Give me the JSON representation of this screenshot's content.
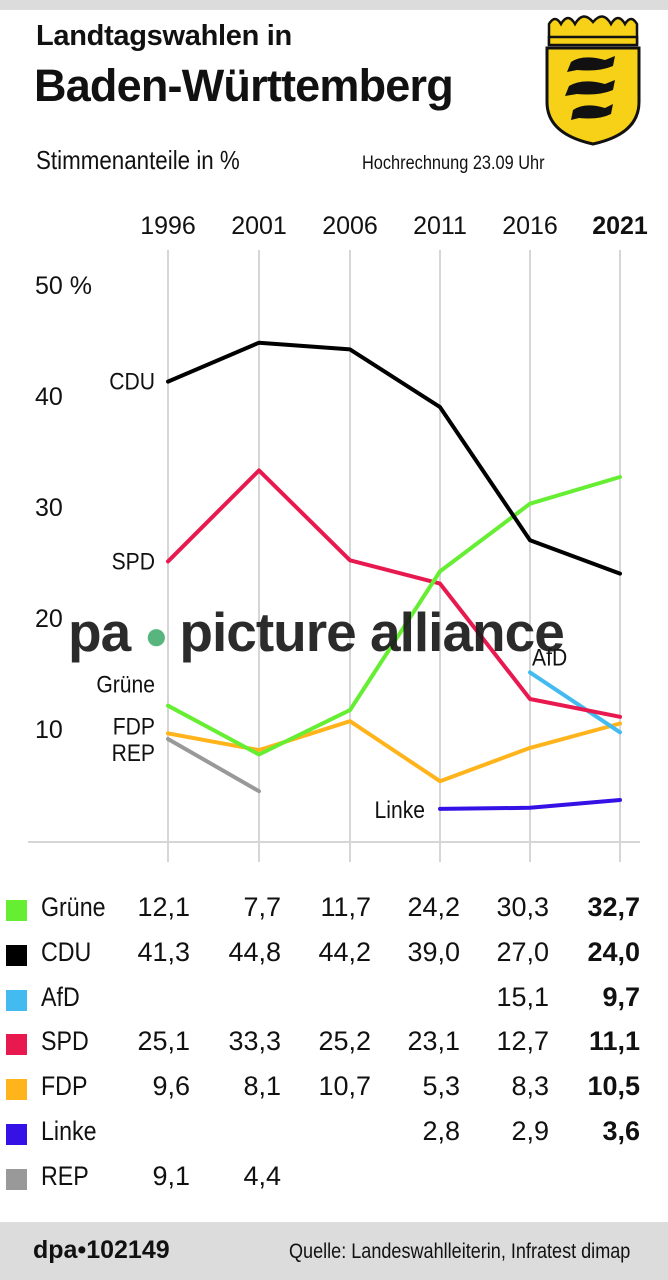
{
  "header": {
    "title_line1": "Landtagswahlen in",
    "title_line2": "Baden-Württemberg",
    "subtitle": "Stimmenanteile in %",
    "projection": "Hochrechnung 23.09 Uhr"
  },
  "chart_data": {
    "type": "line",
    "x": [
      "1996",
      "2001",
      "2006",
      "2011",
      "2016",
      "2021"
    ],
    "y_ticks": [
      "10",
      "20",
      "30",
      "40",
      "50 %"
    ],
    "ylim": [
      0,
      50
    ],
    "grid": "vertical gridlines at each election year",
    "legend": "table below the chart",
    "series": [
      {
        "name": "Grüne",
        "color": "#66ee33",
        "values": [
          12.1,
          7.7,
          11.7,
          24.2,
          30.3,
          32.7
        ]
      },
      {
        "name": "CDU",
        "color": "#000000",
        "values": [
          41.3,
          44.8,
          44.2,
          39.0,
          27.0,
          24.0
        ]
      },
      {
        "name": "AfD",
        "color": "#44bbf0",
        "values": [
          null,
          null,
          null,
          null,
          15.1,
          9.7
        ]
      },
      {
        "name": "SPD",
        "color": "#e8194f",
        "values": [
          25.1,
          33.3,
          25.2,
          23.1,
          12.7,
          11.1
        ]
      },
      {
        "name": "FDP",
        "color": "#ffb41b",
        "values": [
          9.6,
          8.1,
          10.7,
          5.3,
          8.3,
          10.5
        ]
      },
      {
        "name": "Linke",
        "color": "#3511e6",
        "values": [
          null,
          null,
          null,
          2.8,
          2.9,
          3.6
        ]
      },
      {
        "name": "REP",
        "color": "#999999",
        "values": [
          9.1,
          4.4,
          null,
          null,
          null,
          null
        ]
      }
    ],
    "line_labels": [
      "CDU",
      "SPD",
      "Grüne",
      "FDP",
      "REP",
      "Linke",
      "AfD"
    ]
  },
  "table": {
    "rows": [
      {
        "party": "Grüne",
        "color": "#66ee33",
        "values": [
          "12,1",
          "7,7",
          "11,7",
          "24,2",
          "30,3",
          "32,7"
        ]
      },
      {
        "party": "CDU",
        "color": "#000000",
        "values": [
          "41,3",
          "44,8",
          "44,2",
          "39,0",
          "27,0",
          "24,0"
        ]
      },
      {
        "party": "AfD",
        "color": "#44bbf0",
        "values": [
          "",
          "",
          "",
          "",
          "15,1",
          "9,7"
        ]
      },
      {
        "party": "SPD",
        "color": "#e8194f",
        "values": [
          "25,1",
          "33,3",
          "25,2",
          "23,1",
          "12,7",
          "11,1"
        ]
      },
      {
        "party": "FDP",
        "color": "#ffb41b",
        "values": [
          "9,6",
          "8,1",
          "10,7",
          "5,3",
          "8,3",
          "10,5"
        ]
      },
      {
        "party": "Linke",
        "color": "#3511e6",
        "values": [
          "",
          "",
          "",
          "2,8",
          "2,9",
          "3,6"
        ]
      },
      {
        "party": "REP",
        "color": "#999999",
        "values": [
          "9,1",
          "4,4",
          "",
          "",
          "",
          ""
        ]
      }
    ]
  },
  "watermark": {
    "left": "pa",
    "right": "picture alliance"
  },
  "footer": {
    "agency": "dpa•102149",
    "source": "Quelle: Landeswahlleiterin, Infratest dimap"
  }
}
